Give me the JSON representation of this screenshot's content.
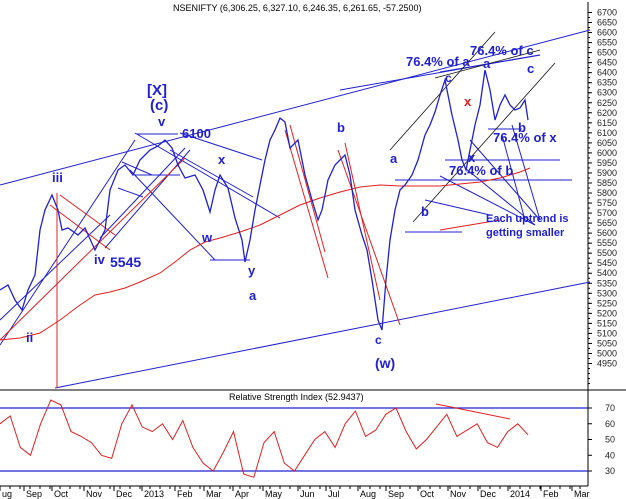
{
  "chart_data": [
    {
      "type": "line",
      "title": "NSENIFTY (6,306.25, 6,327.10, 6,246.35, 6,261.65, -57.2500)",
      "instrument": "NSENIFTY",
      "ohlc_change": {
        "open": 6306.25,
        "high": 6327.1,
        "low": 6246.35,
        "close": 6261.65,
        "change": -57.25
      },
      "ylim": [
        4900,
        6750
      ],
      "yticks": [
        6700,
        6650,
        6600,
        6550,
        6500,
        6450,
        6400,
        6350,
        6300,
        6250,
        6200,
        6150,
        6100,
        6050,
        6000,
        5950,
        5900,
        5850,
        5800,
        5750,
        5700,
        5650,
        5600,
        5550,
        5500,
        5450,
        5400,
        5350,
        5300,
        5250,
        5200,
        5150,
        5100,
        5050,
        5000,
        4950
      ],
      "xticks": [
        "Aug",
        "Sep",
        "Oct",
        "Nov",
        "Dec",
        "2013",
        "Feb",
        "Mar",
        "Apr",
        "May",
        "Jun",
        "Jul",
        "Aug",
        "Sep",
        "Oct",
        "Nov",
        "Dec",
        "2014",
        "Feb",
        "Mar"
      ],
      "grid": false,
      "series": [
        {
          "name": "Price (approx closes)",
          "color": "#2020d0",
          "x": [
            "Aug-12",
            "Sep-12",
            "Oct-12",
            "Nov-12",
            "Dec-12",
            "Jan-13",
            "Feb-13",
            "Mar-13",
            "Apr-13",
            "May-13",
            "Jun-13",
            "Jul-13",
            "Aug-13",
            "Sep-13",
            "Oct-13",
            "Nov-13",
            "Dec-13",
            "Jan-14"
          ],
          "values": [
            5300,
            5650,
            5700,
            5850,
            5900,
            6050,
            5950,
            5700,
            5550,
            6150,
            5850,
            6000,
            5300,
            5750,
            6250,
            6050,
            6300,
            6260
          ]
        },
        {
          "name": "Moving average",
          "color": "#e02020",
          "values": [
            5150,
            5200,
            5350,
            5550,
            5650,
            5750,
            5820,
            5840,
            5860,
            5870,
            5880,
            5900,
            5880,
            5860,
            5880,
            5900,
            5930,
            5950
          ]
        }
      ],
      "annotations": [
        "[X]",
        "(c)",
        "v",
        "6100",
        "iii",
        "ii",
        "iv",
        "5545",
        "x",
        "w",
        "y",
        "a",
        "b",
        "c",
        "(w)",
        "a",
        "b",
        "c",
        "x",
        "a",
        "c",
        "76.4% of a",
        "76.4% of c",
        "76.4% of x",
        "76.4% of b",
        "Each uptrend is getting smaller"
      ]
    },
    {
      "type": "line",
      "title": "Relative Strength Index (52.9437)",
      "value": 52.9437,
      "ylim": [
        25,
        78
      ],
      "yticks": [
        70,
        60,
        50,
        40,
        30
      ],
      "reference_lines": [
        70,
        30
      ],
      "series": [
        {
          "name": "RSI",
          "color": "#e02020",
          "values": [
            60,
            65,
            45,
            40,
            60,
            75,
            72,
            55,
            52,
            48,
            40,
            38,
            60,
            72,
            58,
            55,
            60,
            50,
            62,
            45,
            35,
            30,
            42,
            55,
            28,
            26,
            48,
            55,
            35,
            30,
            40,
            50,
            55,
            45,
            60,
            68,
            52,
            56,
            66,
            70,
            55,
            44,
            50,
            58,
            66,
            52,
            56,
            60,
            48,
            45,
            55,
            60,
            53
          ]
        }
      ],
      "trendline": "falling from ~70 to ~62 (Oct 2013 - Jan 2014)"
    }
  ],
  "labels": {
    "title": "NSENIFTY (6,306.25, 6,327.10, 6,246.35, 6,261.65, -57.2500)",
    "rsi_title": "Relative Strength Index (52.9437)",
    "X_bracket": "[X]",
    "c_paren": "(c)",
    "v": "v",
    "l6100": "6100",
    "iii": "iii",
    "ii": "ii",
    "iv": "iv",
    "l5545": "5545",
    "x1": "x",
    "w": "w",
    "y": "y",
    "a1": "a",
    "b1": "b",
    "c1": "c",
    "w_paren": "(w)",
    "a2": "a",
    "b2": "b",
    "c2": "c",
    "x2": "x",
    "x3": "x",
    "a3": "a",
    "c3": "c",
    "b3": "b",
    "fib_a": "76.4% of a",
    "fib_c": "76.4% of c",
    "fib_x": "76.4% of x",
    "fib_b": "76.4% of b",
    "note1": "Each uptrend is",
    "note2": "getting smaller"
  },
  "yticks": [
    "6700",
    "6650",
    "6600",
    "6550",
    "6500",
    "6450",
    "6400",
    "6350",
    "6300",
    "6250",
    "6200",
    "6150",
    "6100",
    "6050",
    "6000",
    "5950",
    "5900",
    "5850",
    "5800",
    "5750",
    "5700",
    "5650",
    "5600",
    "5550",
    "5500",
    "5450",
    "5400",
    "5350",
    "5300",
    "5250",
    "5200",
    "5150",
    "5100",
    "5050",
    "5000",
    "4950"
  ],
  "rsi_ticks": [
    "70",
    "60",
    "50",
    "40",
    "30"
  ],
  "xticks": [
    "ug",
    "Sep",
    "Oct",
    "Nov",
    "Dec",
    "2013",
    "Feb",
    "Mar",
    "Apr",
    "May",
    "Jun",
    "Jul",
    "Aug",
    "Sep",
    "Oct",
    "Nov",
    "Dec",
    "2014",
    "Feb",
    "Mar"
  ]
}
